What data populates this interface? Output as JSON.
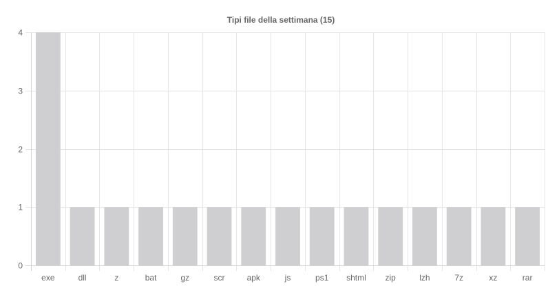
{
  "chart_data": {
    "type": "bar",
    "title": "Tipi file della settimana (15)",
    "xlabel": "",
    "ylabel": "",
    "categories": [
      "exe",
      "dll",
      "z",
      "bat",
      "gz",
      "scr",
      "apk",
      "js",
      "ps1",
      "shtml",
      "zip",
      "lzh",
      "7z",
      "xz",
      "rar"
    ],
    "values": [
      4,
      1,
      1,
      1,
      1,
      1,
      1,
      1,
      1,
      1,
      1,
      1,
      1,
      1,
      1
    ],
    "ylim": [
      0,
      4
    ],
    "yticks": [
      "0",
      "1",
      "2",
      "3",
      "4"
    ],
    "grid": true,
    "legend": "none",
    "colors": {
      "bar": "#cfcfd1",
      "grid": "#e5e5e5",
      "axis": "#d4d4d4",
      "text": "#666666"
    }
  }
}
